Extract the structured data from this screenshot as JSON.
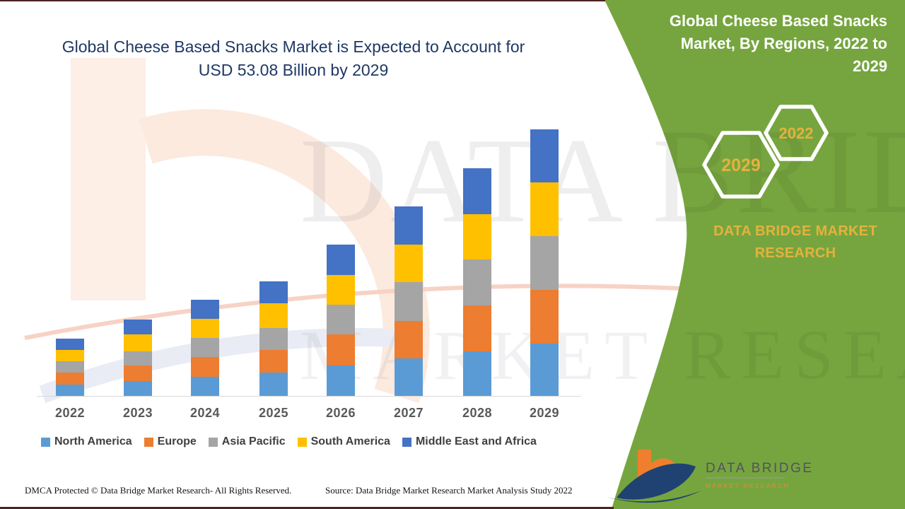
{
  "header": {
    "title": "Global Cheese Based Snacks Market is Expected to Account for USD 53.08 Billion by 2029"
  },
  "side_panel": {
    "title": "Global Cheese Based Snacks Market, By Regions, 2022 to 2029",
    "badge_2029": "2029",
    "badge_2022": "2022",
    "brand_text": "DATA BRIDGE MARKET RESEARCH",
    "panel_color": "#76A53F",
    "gold_color": "#E3B23D"
  },
  "watermark": {
    "line1": "DATA BRIDGE",
    "line2": "MARKET RESEARCH"
  },
  "chart_data": {
    "type": "bar",
    "stacked": true,
    "title": "Global Cheese Based Snacks Market, By Regions, 2022 to 2029",
    "unit": "USD Billion",
    "categories": [
      "2022",
      "2023",
      "2024",
      "2025",
      "2026",
      "2027",
      "2028",
      "2029"
    ],
    "series": [
      {
        "name": "North America",
        "color": "#5B9BD5",
        "values": [
          2.25,
          2.96,
          3.8,
          4.65,
          6.05,
          7.46,
          8.87,
          10.42
        ]
      },
      {
        "name": "Europe",
        "color": "#ED7D31",
        "values": [
          2.39,
          3.1,
          3.94,
          4.51,
          6.2,
          7.46,
          9.15,
          10.7
        ]
      },
      {
        "name": "Asia Pacific",
        "color": "#A5A5A5",
        "values": [
          2.25,
          2.82,
          3.8,
          4.36,
          5.91,
          7.74,
          9.15,
          10.7
        ]
      },
      {
        "name": "South America",
        "color": "#FFC000",
        "values": [
          2.25,
          3.38,
          3.8,
          4.93,
          5.91,
          7.46,
          9.01,
          10.7
        ]
      },
      {
        "name": "Middle East and Africa",
        "color": "#4472C4",
        "values": [
          2.25,
          2.96,
          3.8,
          4.36,
          6.05,
          7.6,
          9.15,
          10.56
        ]
      }
    ],
    "totals": [
      11.39,
      15.22,
      19.14,
      22.81,
      30.12,
      37.72,
      45.33,
      53.08
    ],
    "ylim": [
      0,
      55
    ],
    "gridlines": false,
    "value_labels": false,
    "legend_position": "bottom"
  },
  "footer": {
    "dmca_text": "DMCA Protected © Data Bridge Market Research- All Rights Reserved.",
    "source_text": "Source: Data Bridge Market Research Market Analysis Study 2022"
  },
  "logo": {
    "name": "DATA BRIDGE",
    "tagline": "MARKET RESEARCH"
  }
}
